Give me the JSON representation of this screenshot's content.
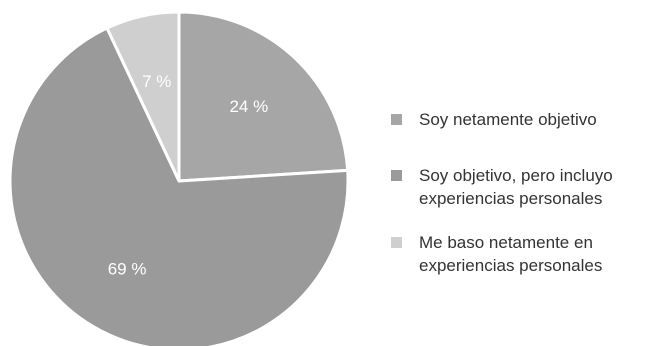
{
  "chart_data": {
    "type": "pie",
    "slices": [
      {
        "label": "Soy netamente objetivo",
        "value": 24,
        "value_label": "24 %",
        "color": "#a6a6a6"
      },
      {
        "label": "Soy objetivo, pero incluyo experiencias personales",
        "value": 69,
        "value_label": "69 %",
        "color": "#9a9a9a"
      },
      {
        "label": "Me baso netamente en experiencias personales",
        "value": 7,
        "value_label": "7 %",
        "color": "#cfcfcf"
      }
    ],
    "legend": {
      "placement": "right",
      "entries": [
        {
          "lines": [
            "Soy netamente objetivo"
          ],
          "color": "#a6a6a6"
        },
        {
          "lines": [
            "Soy objetivo, pero incluyo",
            "experiencias personales"
          ],
          "color": "#9a9a9a"
        },
        {
          "lines": [
            "Me baso netamente en",
            "experiencias personales"
          ],
          "color": "#cfcfcf"
        }
      ]
    }
  }
}
